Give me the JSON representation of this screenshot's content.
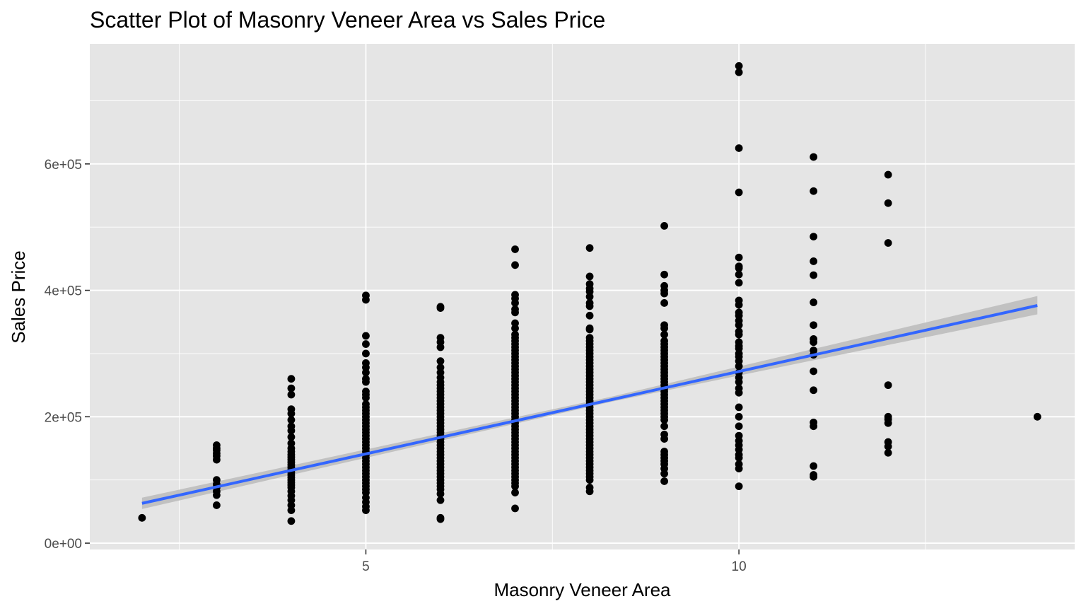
{
  "chart_data": {
    "type": "scatter",
    "title": "Scatter Plot of Masonry Veneer Area vs Sales Price",
    "xlabel": "Masonry Veneer Area",
    "ylabel": "Sales Price",
    "xlim": [
      1.3,
      14.5
    ],
    "ylim": [
      -10000,
      790000
    ],
    "x_ticks": [
      5,
      10
    ],
    "x_tick_labels": [
      "5",
      "10"
    ],
    "y_ticks": [
      0,
      200000,
      400000,
      600000
    ],
    "y_tick_labels": [
      "0e+00",
      "2e+05",
      "4e+05",
      "6e+05"
    ],
    "grid": true,
    "legend": "none",
    "colors": {
      "panel_background": "#e5e5e5",
      "grid_line": "#ffffff",
      "point": "#000000",
      "fit_line": "#3366ff",
      "confidence_band": "#bdbdbd"
    },
    "trend_line": {
      "method": "linear",
      "start": [
        2,
        63000
      ],
      "end": [
        14,
        376000
      ],
      "confidence_band": [
        {
          "x": 2,
          "lower": 54000,
          "upper": 72000
        },
        {
          "x": 8.3,
          "lower": 224000,
          "upper": 232000
        },
        {
          "x": 14,
          "lower": 362000,
          "upper": 391000
        }
      ]
    },
    "points": [
      [
        2,
        40000
      ],
      [
        3,
        60000
      ],
      [
        3,
        76000
      ],
      [
        3,
        82000
      ],
      [
        3,
        88000
      ],
      [
        3,
        93000
      ],
      [
        3,
        100000
      ],
      [
        3,
        132000
      ],
      [
        3,
        138000
      ],
      [
        3,
        142000
      ],
      [
        3,
        147000
      ],
      [
        3,
        150000
      ],
      [
        3,
        155000
      ],
      [
        4,
        35000
      ],
      [
        4,
        52000
      ],
      [
        4,
        60000
      ],
      [
        4,
        68000
      ],
      [
        4,
        75000
      ],
      [
        4,
        82000
      ],
      [
        4,
        88000
      ],
      [
        4,
        92000
      ],
      [
        4,
        96000
      ],
      [
        4,
        100000
      ],
      [
        4,
        104000
      ],
      [
        4,
        108000
      ],
      [
        4,
        112000
      ],
      [
        4,
        116000
      ],
      [
        4,
        120000
      ],
      [
        4,
        124000
      ],
      [
        4,
        128000
      ],
      [
        4,
        132000
      ],
      [
        4,
        136000
      ],
      [
        4,
        140000
      ],
      [
        4,
        145000
      ],
      [
        4,
        150000
      ],
      [
        4,
        158000
      ],
      [
        4,
        168000
      ],
      [
        4,
        178000
      ],
      [
        4,
        185000
      ],
      [
        4,
        195000
      ],
      [
        4,
        205000
      ],
      [
        4,
        212000
      ],
      [
        4,
        235000
      ],
      [
        4,
        245000
      ],
      [
        4,
        260000
      ],
      [
        5,
        52000
      ],
      [
        5,
        58000
      ],
      [
        5,
        65000
      ],
      [
        5,
        72000
      ],
      [
        5,
        80000
      ],
      [
        5,
        85000
      ],
      [
        5,
        90000
      ],
      [
        5,
        95000
      ],
      [
        5,
        100000
      ],
      [
        5,
        105000
      ],
      [
        5,
        110000
      ],
      [
        5,
        115000
      ],
      [
        5,
        120000
      ],
      [
        5,
        125000
      ],
      [
        5,
        130000
      ],
      [
        5,
        135000
      ],
      [
        5,
        140000
      ],
      [
        5,
        145000
      ],
      [
        5,
        150000
      ],
      [
        5,
        155000
      ],
      [
        5,
        160000
      ],
      [
        5,
        165000
      ],
      [
        5,
        170000
      ],
      [
        5,
        175000
      ],
      [
        5,
        180000
      ],
      [
        5,
        185000
      ],
      [
        5,
        190000
      ],
      [
        5,
        195000
      ],
      [
        5,
        200000
      ],
      [
        5,
        205000
      ],
      [
        5,
        210000
      ],
      [
        5,
        215000
      ],
      [
        5,
        220000
      ],
      [
        5,
        230000
      ],
      [
        5,
        235000
      ],
      [
        5,
        240000
      ],
      [
        5,
        255000
      ],
      [
        5,
        260000
      ],
      [
        5,
        270000
      ],
      [
        5,
        278000
      ],
      [
        5,
        285000
      ],
      [
        5,
        300000
      ],
      [
        5,
        315000
      ],
      [
        5,
        328000
      ],
      [
        5,
        385000
      ],
      [
        5,
        392000
      ],
      [
        6,
        38000
      ],
      [
        6,
        40000
      ],
      [
        6,
        68000
      ],
      [
        6,
        78000
      ],
      [
        6,
        85000
      ],
      [
        6,
        90000
      ],
      [
        6,
        95000
      ],
      [
        6,
        100000
      ],
      [
        6,
        105000
      ],
      [
        6,
        110000
      ],
      [
        6,
        115000
      ],
      [
        6,
        120000
      ],
      [
        6,
        125000
      ],
      [
        6,
        130000
      ],
      [
        6,
        135000
      ],
      [
        6,
        140000
      ],
      [
        6,
        145000
      ],
      [
        6,
        150000
      ],
      [
        6,
        155000
      ],
      [
        6,
        160000
      ],
      [
        6,
        165000
      ],
      [
        6,
        170000
      ],
      [
        6,
        175000
      ],
      [
        6,
        180000
      ],
      [
        6,
        185000
      ],
      [
        6,
        190000
      ],
      [
        6,
        195000
      ],
      [
        6,
        200000
      ],
      [
        6,
        205000
      ],
      [
        6,
        210000
      ],
      [
        6,
        215000
      ],
      [
        6,
        220000
      ],
      [
        6,
        225000
      ],
      [
        6,
        230000
      ],
      [
        6,
        235000
      ],
      [
        6,
        240000
      ],
      [
        6,
        245000
      ],
      [
        6,
        250000
      ],
      [
        6,
        255000
      ],
      [
        6,
        262000
      ],
      [
        6,
        270000
      ],
      [
        6,
        278000
      ],
      [
        6,
        288000
      ],
      [
        6,
        310000
      ],
      [
        6,
        318000
      ],
      [
        6,
        325000
      ],
      [
        6,
        372000
      ],
      [
        6,
        374000
      ],
      [
        7,
        55000
      ],
      [
        7,
        80000
      ],
      [
        7,
        90000
      ],
      [
        7,
        95000
      ],
      [
        7,
        100000
      ],
      [
        7,
        105000
      ],
      [
        7,
        110000
      ],
      [
        7,
        115000
      ],
      [
        7,
        120000
      ],
      [
        7,
        125000
      ],
      [
        7,
        130000
      ],
      [
        7,
        135000
      ],
      [
        7,
        140000
      ],
      [
        7,
        145000
      ],
      [
        7,
        150000
      ],
      [
        7,
        155000
      ],
      [
        7,
        160000
      ],
      [
        7,
        165000
      ],
      [
        7,
        170000
      ],
      [
        7,
        175000
      ],
      [
        7,
        180000
      ],
      [
        7,
        185000
      ],
      [
        7,
        190000
      ],
      [
        7,
        195000
      ],
      [
        7,
        200000
      ],
      [
        7,
        205000
      ],
      [
        7,
        210000
      ],
      [
        7,
        215000
      ],
      [
        7,
        220000
      ],
      [
        7,
        225000
      ],
      [
        7,
        230000
      ],
      [
        7,
        235000
      ],
      [
        7,
        240000
      ],
      [
        7,
        245000
      ],
      [
        7,
        250000
      ],
      [
        7,
        255000
      ],
      [
        7,
        260000
      ],
      [
        7,
        265000
      ],
      [
        7,
        270000
      ],
      [
        7,
        275000
      ],
      [
        7,
        280000
      ],
      [
        7,
        285000
      ],
      [
        7,
        290000
      ],
      [
        7,
        295000
      ],
      [
        7,
        300000
      ],
      [
        7,
        305000
      ],
      [
        7,
        310000
      ],
      [
        7,
        315000
      ],
      [
        7,
        320000
      ],
      [
        7,
        325000
      ],
      [
        7,
        330000
      ],
      [
        7,
        340000
      ],
      [
        7,
        348000
      ],
      [
        7,
        365000
      ],
      [
        7,
        370000
      ],
      [
        7,
        380000
      ],
      [
        7,
        387000
      ],
      [
        7,
        393000
      ],
      [
        7,
        440000
      ],
      [
        7,
        465000
      ],
      [
        8,
        82000
      ],
      [
        8,
        88000
      ],
      [
        8,
        100000
      ],
      [
        8,
        105000
      ],
      [
        8,
        110000
      ],
      [
        8,
        115000
      ],
      [
        8,
        120000
      ],
      [
        8,
        125000
      ],
      [
        8,
        130000
      ],
      [
        8,
        135000
      ],
      [
        8,
        140000
      ],
      [
        8,
        145000
      ],
      [
        8,
        150000
      ],
      [
        8,
        155000
      ],
      [
        8,
        160000
      ],
      [
        8,
        165000
      ],
      [
        8,
        170000
      ],
      [
        8,
        175000
      ],
      [
        8,
        180000
      ],
      [
        8,
        185000
      ],
      [
        8,
        190000
      ],
      [
        8,
        195000
      ],
      [
        8,
        200000
      ],
      [
        8,
        205000
      ],
      [
        8,
        210000
      ],
      [
        8,
        215000
      ],
      [
        8,
        220000
      ],
      [
        8,
        225000
      ],
      [
        8,
        230000
      ],
      [
        8,
        235000
      ],
      [
        8,
        240000
      ],
      [
        8,
        245000
      ],
      [
        8,
        250000
      ],
      [
        8,
        255000
      ],
      [
        8,
        260000
      ],
      [
        8,
        265000
      ],
      [
        8,
        270000
      ],
      [
        8,
        275000
      ],
      [
        8,
        280000
      ],
      [
        8,
        285000
      ],
      [
        8,
        290000
      ],
      [
        8,
        295000
      ],
      [
        8,
        300000
      ],
      [
        8,
        305000
      ],
      [
        8,
        310000
      ],
      [
        8,
        315000
      ],
      [
        8,
        320000
      ],
      [
        8,
        325000
      ],
      [
        8,
        338000
      ],
      [
        8,
        340000
      ],
      [
        8,
        360000
      ],
      [
        8,
        375000
      ],
      [
        8,
        380000
      ],
      [
        8,
        390000
      ],
      [
        8,
        398000
      ],
      [
        8,
        403000
      ],
      [
        8,
        410000
      ],
      [
        8,
        422000
      ],
      [
        8,
        467000
      ],
      [
        9,
        98000
      ],
      [
        9,
        110000
      ],
      [
        9,
        118000
      ],
      [
        9,
        125000
      ],
      [
        9,
        130000
      ],
      [
        9,
        135000
      ],
      [
        9,
        140000
      ],
      [
        9,
        145000
      ],
      [
        9,
        165000
      ],
      [
        9,
        172000
      ],
      [
        9,
        185000
      ],
      [
        9,
        195000
      ],
      [
        9,
        200000
      ],
      [
        9,
        205000
      ],
      [
        9,
        210000
      ],
      [
        9,
        215000
      ],
      [
        9,
        220000
      ],
      [
        9,
        225000
      ],
      [
        9,
        230000
      ],
      [
        9,
        235000
      ],
      [
        9,
        240000
      ],
      [
        9,
        245000
      ],
      [
        9,
        250000
      ],
      [
        9,
        255000
      ],
      [
        9,
        260000
      ],
      [
        9,
        265000
      ],
      [
        9,
        270000
      ],
      [
        9,
        275000
      ],
      [
        9,
        280000
      ],
      [
        9,
        285000
      ],
      [
        9,
        290000
      ],
      [
        9,
        295000
      ],
      [
        9,
        300000
      ],
      [
        9,
        305000
      ],
      [
        9,
        310000
      ],
      [
        9,
        315000
      ],
      [
        9,
        320000
      ],
      [
        9,
        330000
      ],
      [
        9,
        340000
      ],
      [
        9,
        345000
      ],
      [
        9,
        380000
      ],
      [
        9,
        395000
      ],
      [
        9,
        400000
      ],
      [
        9,
        407000
      ],
      [
        9,
        425000
      ],
      [
        9,
        502000
      ],
      [
        10,
        90000
      ],
      [
        10,
        118000
      ],
      [
        10,
        125000
      ],
      [
        10,
        135000
      ],
      [
        10,
        140000
      ],
      [
        10,
        148000
      ],
      [
        10,
        155000
      ],
      [
        10,
        162000
      ],
      [
        10,
        170000
      ],
      [
        10,
        185000
      ],
      [
        10,
        200000
      ],
      [
        10,
        215000
      ],
      [
        10,
        238000
      ],
      [
        10,
        245000
      ],
      [
        10,
        255000
      ],
      [
        10,
        262000
      ],
      [
        10,
        270000
      ],
      [
        10,
        280000
      ],
      [
        10,
        288000
      ],
      [
        10,
        295000
      ],
      [
        10,
        300000
      ],
      [
        10,
        308000
      ],
      [
        10,
        312000
      ],
      [
        10,
        318000
      ],
      [
        10,
        330000
      ],
      [
        10,
        335000
      ],
      [
        10,
        345000
      ],
      [
        10,
        352000
      ],
      [
        10,
        360000
      ],
      [
        10,
        365000
      ],
      [
        10,
        377000
      ],
      [
        10,
        384000
      ],
      [
        10,
        412000
      ],
      [
        10,
        425000
      ],
      [
        10,
        435000
      ],
      [
        10,
        438000
      ],
      [
        10,
        452000
      ],
      [
        10,
        555000
      ],
      [
        10,
        625000
      ],
      [
        10,
        745000
      ],
      [
        10,
        755000
      ],
      [
        11,
        105000
      ],
      [
        11,
        108000
      ],
      [
        11,
        122000
      ],
      [
        11,
        185000
      ],
      [
        11,
        191000
      ],
      [
        11,
        242000
      ],
      [
        11,
        272000
      ],
      [
        11,
        298000
      ],
      [
        11,
        305000
      ],
      [
        11,
        318000
      ],
      [
        11,
        323000
      ],
      [
        11,
        345000
      ],
      [
        11,
        381000
      ],
      [
        11,
        424000
      ],
      [
        11,
        446000
      ],
      [
        11,
        485000
      ],
      [
        11,
        557000
      ],
      [
        11,
        611000
      ],
      [
        12,
        143000
      ],
      [
        12,
        153000
      ],
      [
        12,
        160000
      ],
      [
        12,
        190000
      ],
      [
        12,
        196000
      ],
      [
        12,
        200000
      ],
      [
        12,
        250000
      ],
      [
        12,
        475000
      ],
      [
        12,
        538000
      ],
      [
        12,
        583000
      ],
      [
        14,
        200000
      ]
    ]
  }
}
